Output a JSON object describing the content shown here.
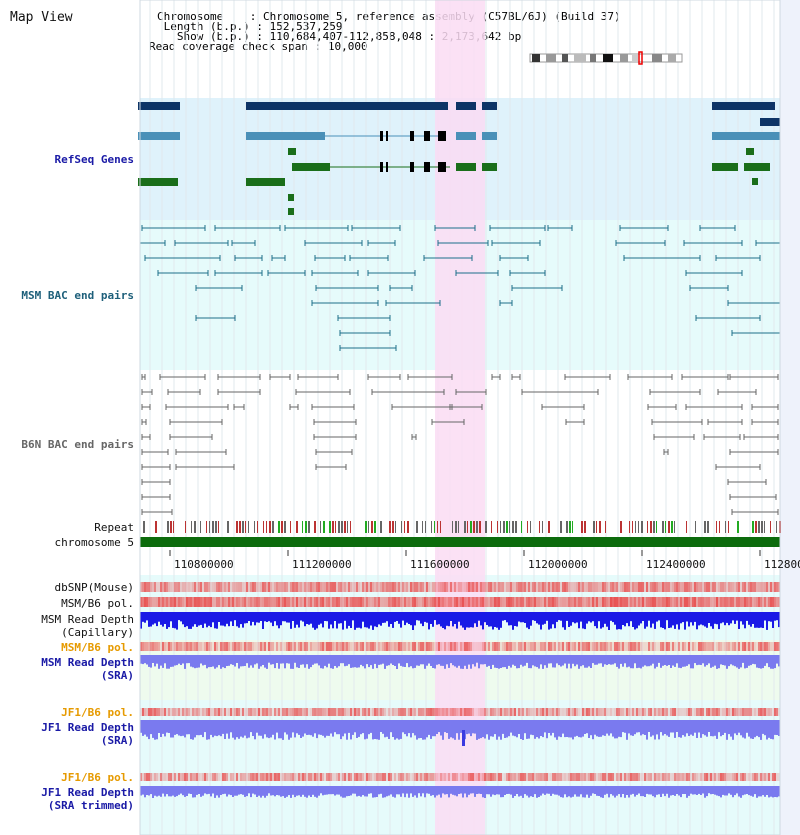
{
  "title": "Map View",
  "info": {
    "chromosome_key": "Chromosome",
    "chromosome_val": "Chromosome 5, reference assembly (C57BL/6J) (Build 37)",
    "length_key": "Length (b.p.)",
    "length_val": "152,537,259",
    "show_key": "Show (b.p.)",
    "show_val": "110,684,407-112,858,048 : 2,173,642 bp",
    "coverage_key": "Read coverage check span",
    "coverage_val": "10,000"
  },
  "tracks": {
    "refseq": "RefSeq Genes",
    "msm_bac": "MSM BAC end pairs",
    "b6n_bac": "B6N BAC end pairs",
    "repeat": "Repeat",
    "chromosome": "chromosome 5",
    "dbsnp": "dbSNP(Mouse)",
    "msm_pol": "MSM/B6 pol.",
    "msm_depth_cap_1": "MSM Read Depth",
    "msm_depth_cap_2": "(Capillary)",
    "msm_pol_2": "MSM/B6 pol.",
    "msm_depth_sra_1": "MSM Read Depth",
    "msm_depth_sra_2": "(SRA)",
    "jf1_pol": "JF1/B6 pol.",
    "jf1_depth_1": "JF1 Read Depth",
    "jf1_depth_2": "(SRA)",
    "jf1_pol_2": "JF1/B6 pol.",
    "jf1_trim_1": "JF1 Read Depth",
    "jf1_trim_2": "(SRA trimmed)"
  },
  "axis": {
    "ticks": [
      "110800000",
      "111200000",
      "111600000",
      "112000000",
      "112400000",
      "112800"
    ]
  },
  "colors": {
    "refseq_bg": "#dff2fb",
    "msm_bac_bg": "#e6fbfb",
    "highlight": "#fadcf3",
    "gene_dark": "#0d3466",
    "gene_mid": "#4a90b8",
    "gene_green": "#1a6e1a",
    "bac_teal": "#1d6f8a",
    "bac_gray": "#666666",
    "chrom_green": "#0c6b0c",
    "depth_blue": "#1a1ae6",
    "depth_light": "#7a7aef",
    "pol_red": "#e84a4a",
    "label_blue": "#1a1aa6",
    "label_orange": "#e69a00",
    "label_teal": "#1d5f7a"
  }
}
